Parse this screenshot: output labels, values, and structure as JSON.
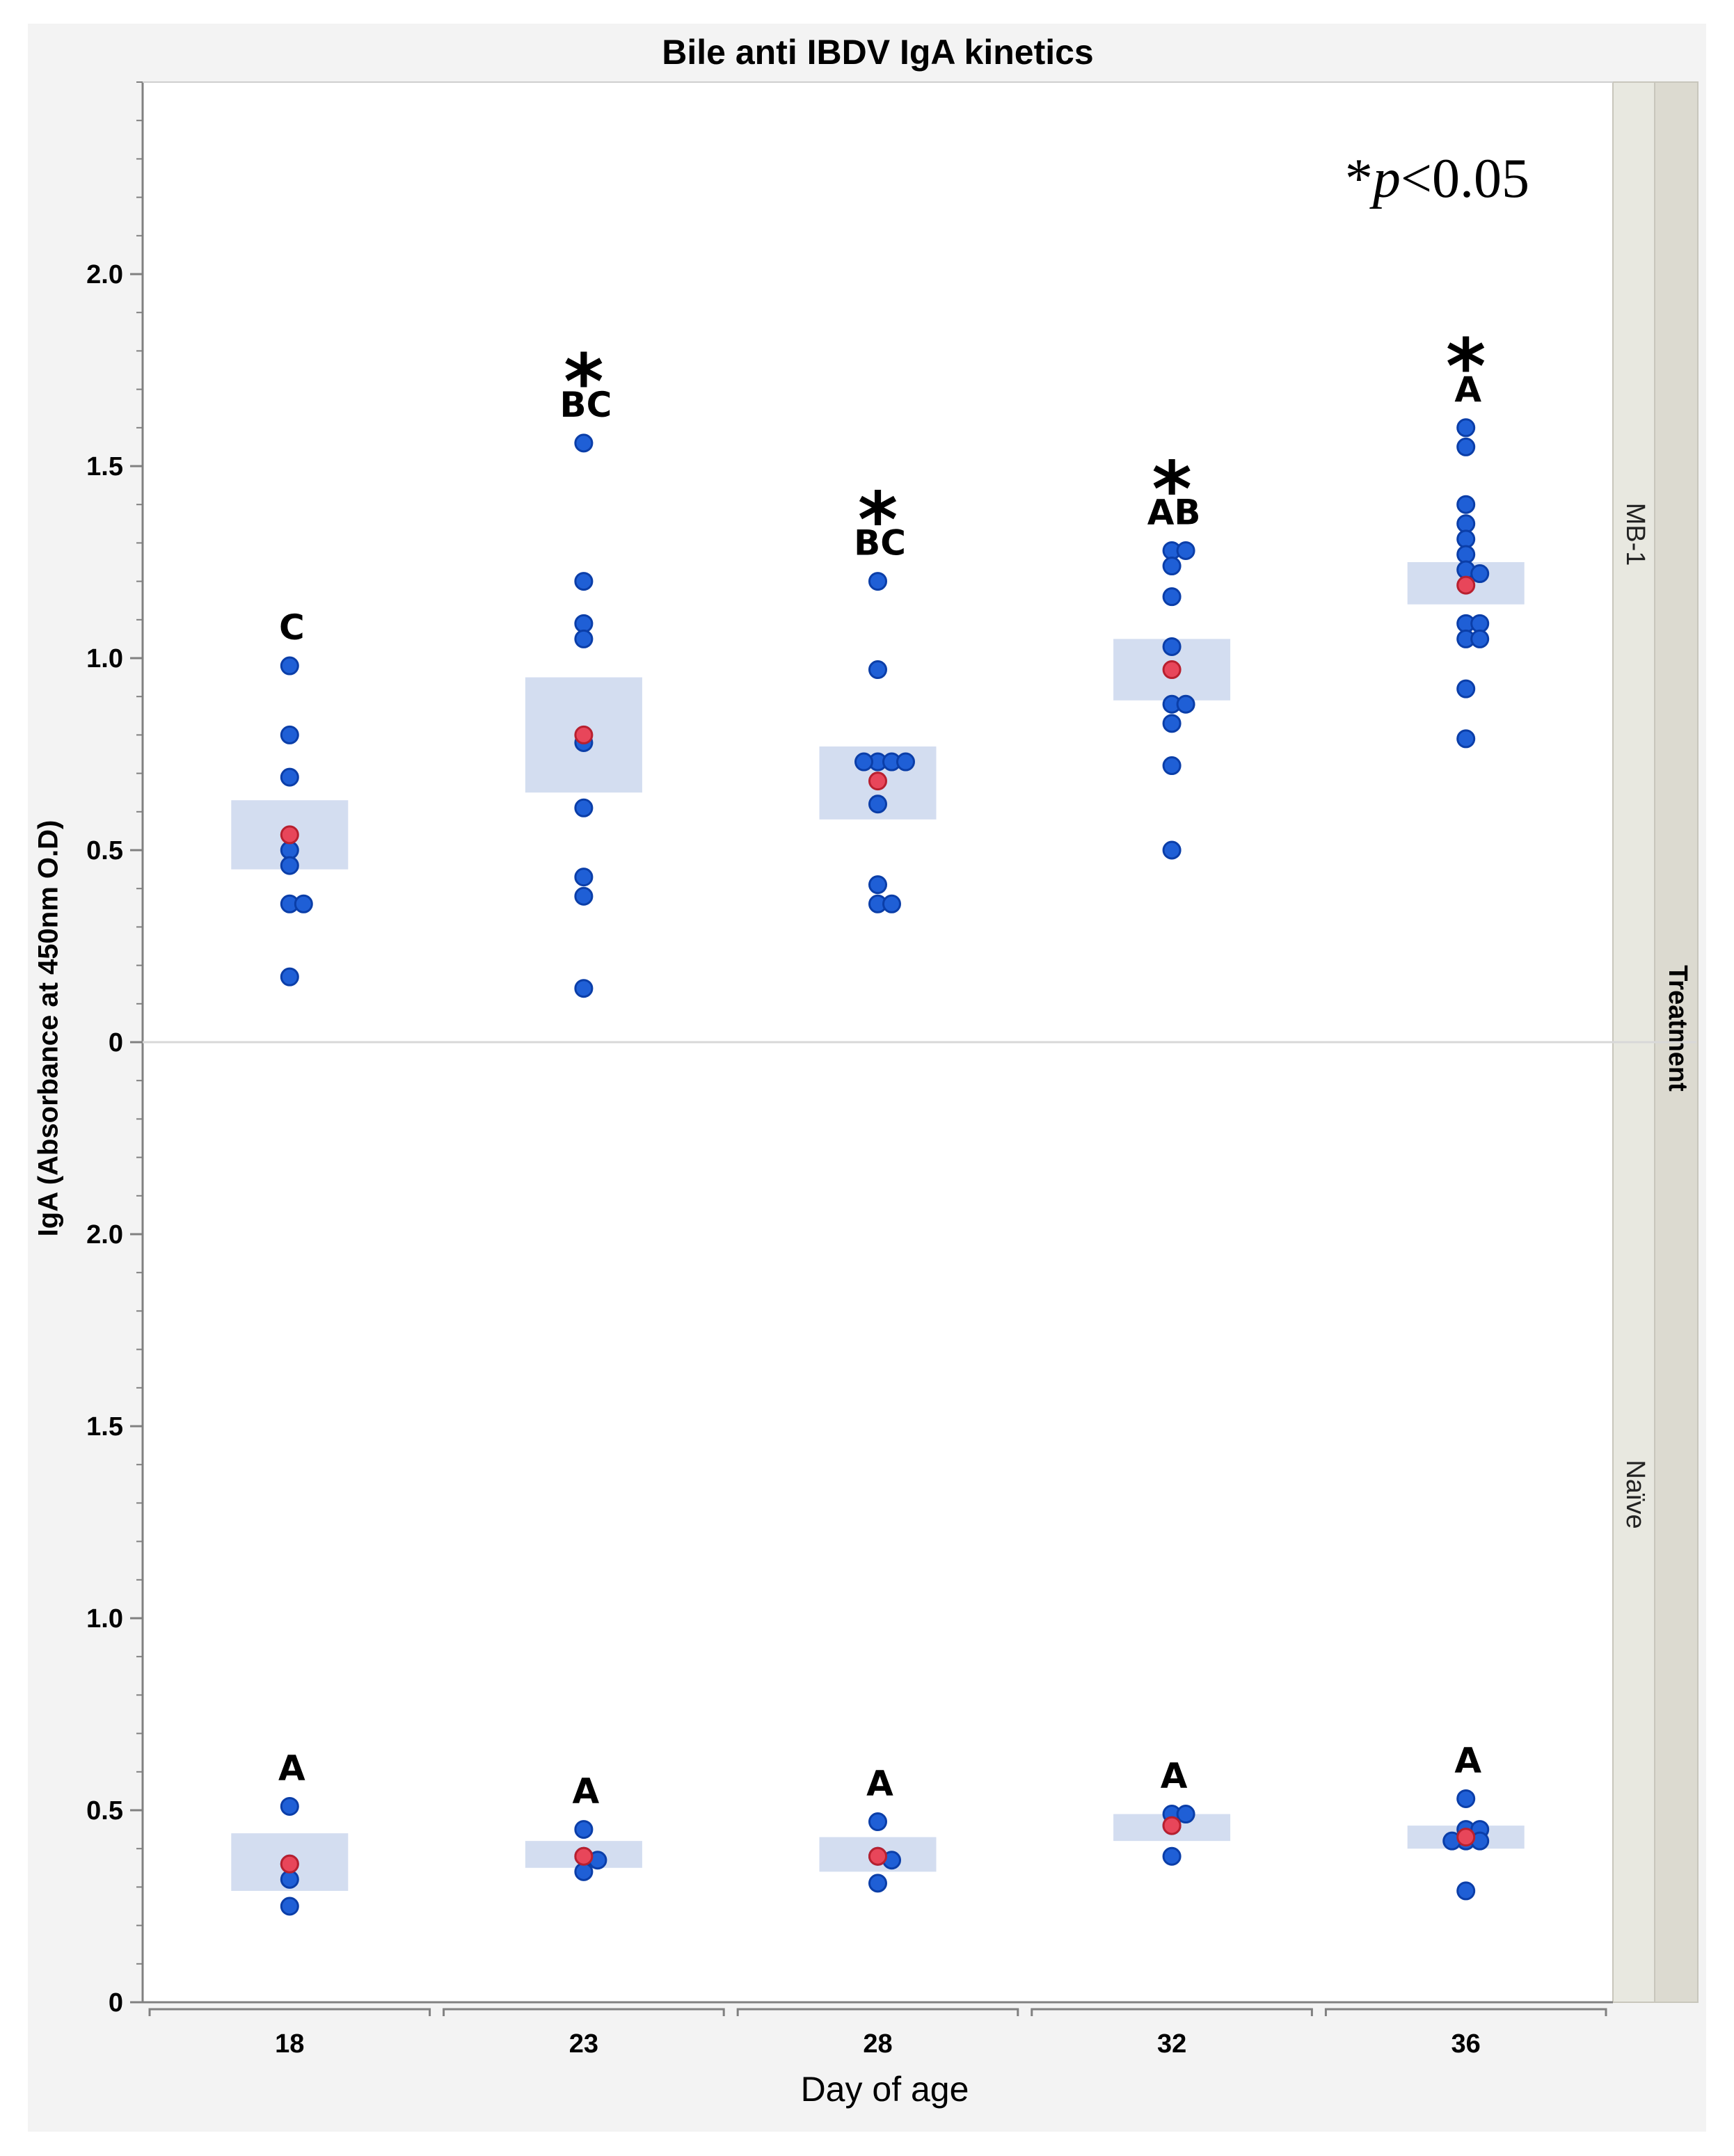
{
  "chart_data": {
    "type": "scatter",
    "title": "Bile anti IBDV IgA kinetics",
    "xlabel": "Day of age",
    "ylabel": "IgA (Absorbance at 450nm O.D)",
    "group_label": "Treatment",
    "annotation": {
      "prefix": "*",
      "italic": "p",
      "suffix": "<0.05"
    },
    "categories": [
      "18",
      "23",
      "28",
      "32",
      "36"
    ],
    "ylim": [
      0,
      2.5
    ],
    "yticks": [
      0,
      0.5,
      1.0,
      1.5,
      2.0
    ],
    "ytick_labels": [
      "0",
      "0.5",
      "1.0",
      "1.5",
      "2.0"
    ],
    "colors": {
      "point": "#1f5fd6",
      "point_edge": "#0b3ea8",
      "mean": "#e8465a",
      "mean_edge": "#b8202f",
      "ci_box": "#d3ddf0",
      "strip_bg": "#e8e8e0",
      "strip_outer": "#dcdad0",
      "frame": "#808080",
      "page_bg": "#f3f3f3"
    },
    "panels": [
      {
        "name": "MB-1",
        "groups": [
          {
            "x": "18",
            "points": [
              0.98,
              0.8,
              0.69,
              0.5,
              0.46,
              0.36,
              0.36,
              0.17
            ],
            "mean": 0.54,
            "ci": [
              0.45,
              0.63
            ],
            "letter": "C",
            "significant": false
          },
          {
            "x": "23",
            "points": [
              1.56,
              1.2,
              1.09,
              1.05,
              0.78,
              0.61,
              0.43,
              0.38,
              0.14
            ],
            "mean": 0.8,
            "ci": [
              0.65,
              0.95
            ],
            "letter": "BC",
            "significant": true
          },
          {
            "x": "28",
            "points": [
              1.2,
              0.97,
              0.73,
              0.73,
              0.73,
              0.73,
              0.62,
              0.41,
              0.36,
              0.36
            ],
            "mean": 0.68,
            "ci": [
              0.58,
              0.77
            ],
            "letter": "BC",
            "significant": true
          },
          {
            "x": "32",
            "points": [
              1.28,
              1.28,
              1.24,
              1.16,
              1.03,
              0.88,
              0.88,
              0.83,
              0.72,
              0.5
            ],
            "mean": 0.97,
            "ci": [
              0.89,
              1.05
            ],
            "letter": "AB",
            "significant": true
          },
          {
            "x": "36",
            "points": [
              1.6,
              1.55,
              1.4,
              1.35,
              1.31,
              1.27,
              1.23,
              1.22,
              1.09,
              1.09,
              1.05,
              1.05,
              0.92,
              0.79
            ],
            "mean": 1.19,
            "ci": [
              1.14,
              1.25
            ],
            "letter": "A",
            "significant": true
          }
        ]
      },
      {
        "name": "Naïve",
        "groups": [
          {
            "x": "18",
            "points": [
              0.51,
              0.36,
              0.32,
              0.25
            ],
            "mean": 0.36,
            "ci": [
              0.29,
              0.44
            ],
            "letter": "A",
            "significant": false
          },
          {
            "x": "23",
            "points": [
              0.45,
              0.38,
              0.37,
              0.34
            ],
            "mean": 0.38,
            "ci": [
              0.35,
              0.42
            ],
            "letter": "A",
            "significant": false
          },
          {
            "x": "28",
            "points": [
              0.47,
              0.38,
              0.37,
              0.31
            ],
            "mean": 0.38,
            "ci": [
              0.34,
              0.43
            ],
            "letter": "A",
            "significant": false
          },
          {
            "x": "32",
            "points": [
              0.49,
              0.49,
              0.46,
              0.38
            ],
            "mean": 0.46,
            "ci": [
              0.42,
              0.49
            ],
            "letter": "A",
            "significant": false
          },
          {
            "x": "36",
            "points": [
              0.53,
              0.45,
              0.45,
              0.42,
              0.42,
              0.42,
              0.29
            ],
            "mean": 0.43,
            "ci": [
              0.4,
              0.46
            ],
            "letter": "A",
            "significant": false
          }
        ]
      }
    ]
  }
}
